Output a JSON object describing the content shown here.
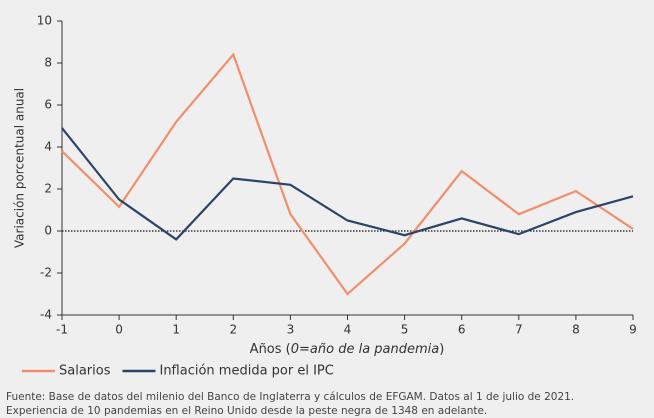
{
  "chart_data": {
    "type": "line",
    "y_label": "Variación porcentual anual",
    "x_label": [
      "Años (",
      "0=año de la pandemia",
      ")"
    ],
    "x": [
      -1,
      0,
      1,
      2,
      3,
      4,
      5,
      6,
      7,
      8,
      9
    ],
    "series": [
      {
        "name": "Salarios",
        "color": "#f28e6c",
        "values": [
          3.8,
          1.15,
          5.2,
          8.4,
          0.8,
          -3.0,
          -0.6,
          2.85,
          0.8,
          1.9,
          0.1
        ]
      },
      {
        "name": "Inflación medida por el IPC",
        "color": "#2b4468",
        "values": [
          4.9,
          1.5,
          -0.4,
          2.5,
          2.2,
          0.5,
          -0.2,
          0.6,
          -0.15,
          0.9,
          1.65
        ]
      }
    ],
    "xlim": [
      -1,
      9
    ],
    "xticks": [
      -1,
      0,
      1,
      2,
      3,
      4,
      5,
      6,
      7,
      8,
      9
    ],
    "ylim": [
      -4,
      10
    ],
    "yticks": [
      -4,
      -2,
      0,
      2,
      4,
      6,
      8,
      10
    ],
    "reference_line": 0,
    "legend": "bottom-left",
    "notes": [
      "Fuente: Base de datos del milenio del Banco de Inglaterra y cálculos de EFGAM. Datos al 1 de julio de 2021.",
      "Experiencia de 10 pandemias en el Reino Unido desde la peste negra de 1348 en adelante."
    ]
  }
}
